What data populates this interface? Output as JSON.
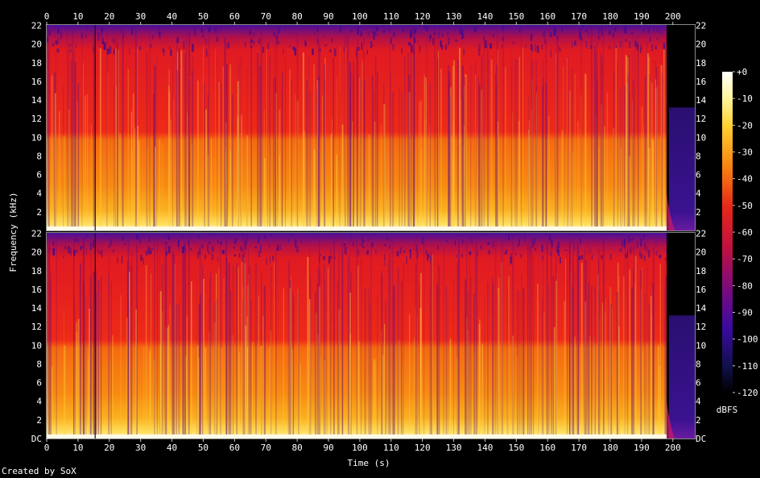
{
  "chart_data": {
    "type": "heatmap",
    "title": "",
    "xlabel": "Time (s)",
    "ylabel": "Frequency (kHz)",
    "colorbar_label": "dBFS",
    "x_ticks": [
      "0",
      "10",
      "20",
      "30",
      "40",
      "50",
      "60",
      "70",
      "80",
      "90",
      "100",
      "110",
      "120",
      "130",
      "140",
      "150",
      "160",
      "170",
      "180",
      "190",
      "200"
    ],
    "y_ticks_top_panel": [
      "22",
      "20",
      "18",
      "16",
      "14",
      "12",
      "10",
      "8",
      "6",
      "4",
      "2"
    ],
    "y_ticks_bottom_panel": [
      "22",
      "20",
      "18",
      "16",
      "14",
      "12",
      "10",
      "8",
      "6",
      "4",
      "2",
      "DC"
    ],
    "xlim": [
      0,
      207
    ],
    "ylim_khz": [
      0,
      22.05
    ],
    "audio_end_s": 198,
    "channels": 2,
    "colorbar_ticks": [
      "+0",
      "-10",
      "-20",
      "-30",
      "-40",
      "-50",
      "-60",
      "-70",
      "-80",
      "-90",
      "-100",
      "-110",
      "-120"
    ],
    "colorbar_range_dbfs": [
      -120,
      0
    ],
    "typical_level_dbfs": {
      "0-2 kHz": -15,
      "2-5 kHz": -35,
      "5-10 kHz": -42,
      "10-20 kHz": -58,
      "20-22 kHz": -85
    }
  },
  "footer": {
    "credit": "Created by SoX"
  }
}
